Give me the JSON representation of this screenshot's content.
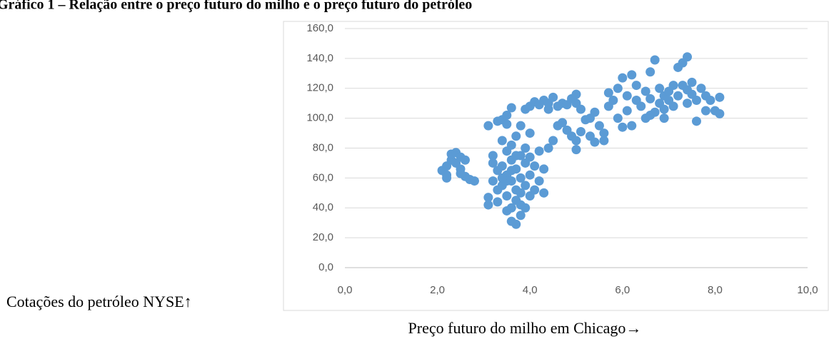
{
  "chart_data": {
    "type": "scatter",
    "title": "Gráfico 1 – Relação entre o preço futuro do milho e o preço futuro do petróleo",
    "x_label": "Preço futuro do milho em Chicago→",
    "y_label": "Cotações do petróleo NYSE↑",
    "color": "#5b9bd5",
    "grid": true,
    "xlim": [
      0,
      10
    ],
    "ylim": [
      0,
      160
    ],
    "xticks": [
      {
        "value": 0,
        "label": "0,0"
      },
      {
        "value": 2,
        "label": "2,0"
      },
      {
        "value": 4,
        "label": "4,0"
      },
      {
        "value": 6,
        "label": "6,0"
      },
      {
        "value": 8,
        "label": "8,0"
      },
      {
        "value": 10,
        "label": "10,0"
      }
    ],
    "yticks": [
      {
        "value": 0,
        "label": "0,0"
      },
      {
        "value": 20,
        "label": "20,0"
      },
      {
        "value": 40,
        "label": "40,0"
      },
      {
        "value": 60,
        "label": "60,0"
      },
      {
        "value": 80,
        "label": "80,0"
      },
      {
        "value": 100,
        "label": "100,0"
      },
      {
        "value": 120,
        "label": "120,0"
      },
      {
        "value": 140,
        "label": "140,0"
      },
      {
        "value": 160,
        "label": "160,0"
      }
    ],
    "x": [
      2.1,
      2.2,
      2.2,
      2.3,
      2.3,
      2.4,
      2.4,
      2.5,
      2.5,
      2.6,
      2.6,
      2.7,
      2.8,
      2.2,
      2.5,
      3.1,
      3.1,
      3.2,
      3.2,
      3.2,
      3.3,
      3.3,
      3.3,
      3.4,
      3.4,
      3.4,
      3.5,
      3.5,
      3.5,
      3.5,
      3.6,
      3.6,
      3.6,
      3.6,
      3.7,
      3.7,
      3.7,
      3.7,
      3.7,
      3.8,
      3.8,
      3.8,
      3.8,
      3.8,
      3.9,
      3.9,
      3.9,
      3.9,
      3.9,
      4.0,
      4.0,
      4.0,
      4.0,
      4.1,
      4.1,
      4.2,
      4.2,
      4.3,
      4.3,
      3.6,
      3.5,
      3.4,
      3.6,
      3.7,
      3.8,
      3.1,
      3.3,
      3.4,
      3.5,
      3.6,
      3.5,
      4.0,
      4.1,
      4.2,
      4.3,
      4.4,
      4.5,
      4.6,
      4.7,
      4.8,
      4.9,
      5.0,
      5.0,
      5.1,
      4.4,
      4.4,
      4.5,
      4.6,
      4.7,
      4.8,
      4.9,
      5.0,
      5.0,
      5.1,
      5.2,
      5.3,
      5.4,
      5.5,
      5.4,
      5.3,
      5.6,
      5.6,
      5.7,
      5.7,
      5.8,
      5.9,
      5.9,
      6.0,
      6.0,
      6.1,
      6.1,
      6.2,
      6.2,
      6.3,
      6.3,
      6.4,
      6.5,
      6.5,
      6.6,
      6.6,
      6.7,
      6.7,
      6.8,
      6.8,
      6.9,
      6.9,
      7.0,
      7.0,
      7.1,
      7.2,
      7.2,
      7.3,
      7.3,
      7.4,
      7.4,
      7.5,
      7.5,
      7.6,
      7.6,
      7.7,
      7.8,
      7.8,
      7.9,
      8.0,
      8.1,
      8.1,
      6.6,
      6.9,
      7.1,
      7.4
    ],
    "values": [
      65,
      62,
      68,
      72,
      76,
      77,
      70,
      74,
      66,
      72,
      61,
      59,
      58,
      60,
      63,
      47,
      42,
      58,
      70,
      75,
      65,
      52,
      44,
      85,
      68,
      55,
      78,
      62,
      48,
      38,
      31,
      72,
      58,
      82,
      29,
      45,
      66,
      88,
      52,
      35,
      60,
      75,
      95,
      42,
      40,
      55,
      70,
      80,
      106,
      48,
      62,
      74,
      90,
      52,
      68,
      58,
      78,
      50,
      66,
      40,
      58,
      60,
      65,
      75,
      50,
      95,
      98,
      99,
      102,
      107,
      96,
      108,
      111,
      109,
      112,
      106,
      114,
      108,
      110,
      109,
      113,
      116,
      110,
      106,
      110,
      80,
      85,
      95,
      97,
      92,
      88,
      85,
      79,
      91,
      99,
      88,
      84,
      95,
      104,
      100,
      85,
      90,
      108,
      117,
      112,
      100,
      120,
      127,
      94,
      115,
      105,
      129,
      95,
      112,
      122,
      108,
      118,
      100,
      131,
      113,
      139,
      104,
      120,
      110,
      115,
      106,
      118,
      112,
      108,
      134,
      115,
      137,
      122,
      141,
      110,
      124,
      116,
      98,
      112,
      120,
      105,
      115,
      112,
      105,
      114,
      103,
      102,
      100,
      122,
      119
    ]
  }
}
